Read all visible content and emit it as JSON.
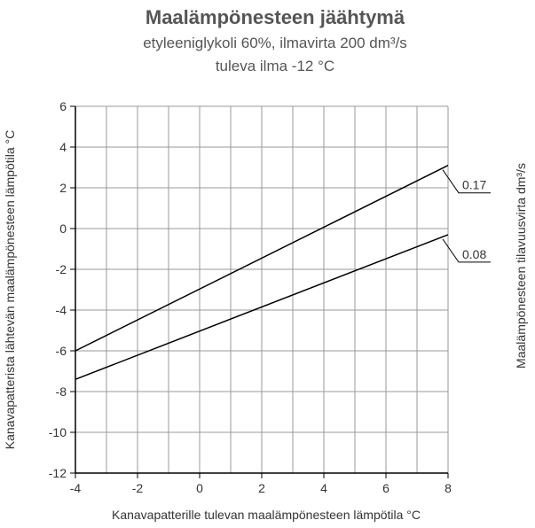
{
  "chart_data": {
    "type": "line",
    "title": "Maalämpönesteen jäähtymä",
    "subtitle": [
      "etyleeniglykoli 60%, ilmavirta 200 dm³/s",
      "tuleva ilma -12 °C"
    ],
    "x_label": "Kanavapatterille tulevan maalämpönesteen lämpötila °C",
    "y_label": "Kanavapatterista lähtevän maalämpönesteen lämpötila °C",
    "y2_label": "Maalämpönesteen tilavuusvirta dm³/s",
    "x": [
      -4,
      8
    ],
    "series": [
      {
        "name": "0.17",
        "color": "#000000",
        "values": [
          -6,
          3.1
        ]
      },
      {
        "name": "0.08",
        "color": "#000000",
        "values": [
          -7.4,
          -0.3
        ]
      }
    ],
    "xlim": [
      -4,
      8
    ],
    "xticks": [
      -4,
      -2,
      0,
      2,
      4,
      6,
      8
    ],
    "ylim": [
      -12,
      6
    ],
    "yticks": [
      -12,
      -10,
      -8,
      -6,
      -4,
      -2,
      0,
      2,
      4,
      6
    ],
    "grid": true
  }
}
